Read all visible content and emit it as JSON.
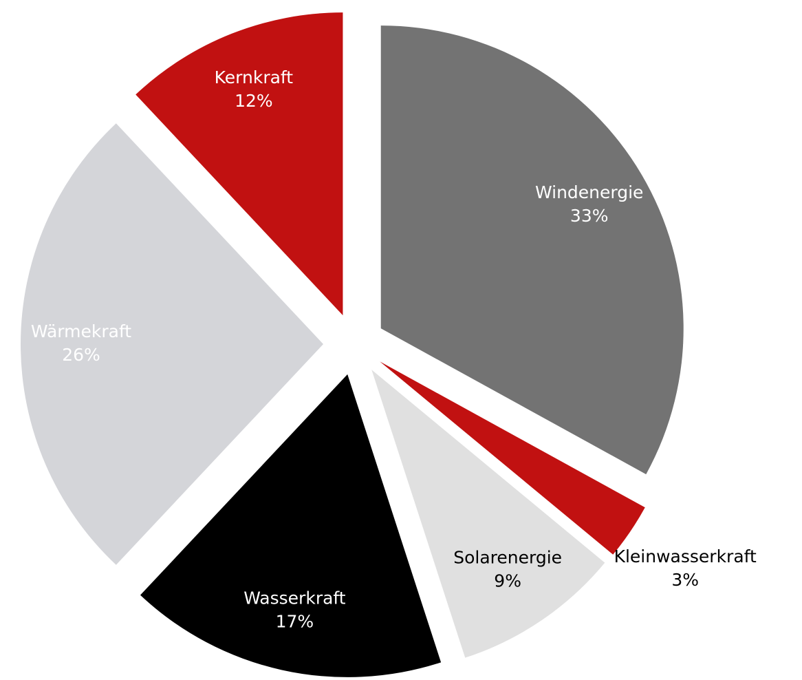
{
  "chart_data": {
    "type": "pie",
    "categories": [
      "Windenergie",
      "Kleinwasserkraft",
      "Solarenergie",
      "Wasserkraft",
      "Wärmekraft",
      "Kernkraft"
    ],
    "values": [
      33,
      3,
      9,
      17,
      26,
      12
    ],
    "value_labels": [
      "33%",
      "3%",
      "9%",
      "17%",
      "26%",
      "12%"
    ],
    "colors": [
      "#737373",
      "#c11111",
      "#e0e0e0",
      "#000000",
      "#d4d5d9",
      "#c11111"
    ]
  }
}
